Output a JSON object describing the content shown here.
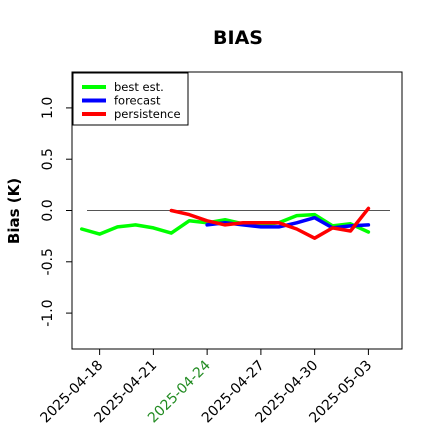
{
  "chart_data": {
    "type": "line",
    "title": "BIAS",
    "xlabel": "",
    "ylabel": "Bias (K)",
    "x_ticks": [
      "2025-04-18",
      "2025-04-21",
      "2025-04-24",
      "2025-04-27",
      "2025-04-30",
      "2025-05-03"
    ],
    "highlighted_tick": "2025-04-24",
    "highlight_color": "#228B22",
    "y_ticks": [
      "-1.0",
      "-0.5",
      "0.0",
      "0.5",
      "1.0"
    ],
    "ylim": [
      -1.35,
      1.35
    ],
    "xlim": [
      "2025-04-16 11:00",
      "2025-05-04 21:00"
    ],
    "grid": false,
    "reference_line": 0,
    "legend_position": "top-left",
    "series": [
      {
        "name": "best est.",
        "color": "#00ff00",
        "x": [
          "2025-04-17",
          "2025-04-18",
          "2025-04-19",
          "2025-04-20",
          "2025-04-21",
          "2025-04-22",
          "2025-04-23",
          "2025-04-24",
          "2025-04-25",
          "2025-04-26",
          "2025-04-27",
          "2025-04-28",
          "2025-04-29",
          "2025-04-30",
          "2025-05-01",
          "2025-05-02",
          "2025-05-03"
        ],
        "values": [
          -0.18,
          -0.23,
          -0.16,
          -0.14,
          -0.17,
          -0.22,
          -0.1,
          -0.12,
          -0.09,
          -0.13,
          -0.14,
          -0.12,
          -0.05,
          -0.04,
          -0.15,
          -0.13,
          -0.21
        ]
      },
      {
        "name": "forecast",
        "color": "#0000ff",
        "x": [
          "2025-04-24",
          "2025-04-25",
          "2025-04-26",
          "2025-04-27",
          "2025-04-28",
          "2025-04-29",
          "2025-04-30",
          "2025-05-01",
          "2025-05-02",
          "2025-05-03"
        ],
        "values": [
          -0.14,
          -0.12,
          -0.14,
          -0.16,
          -0.16,
          -0.12,
          -0.07,
          -0.17,
          -0.15,
          -0.14
        ]
      },
      {
        "name": "persistence",
        "color": "#ff0000",
        "x": [
          "2025-04-22",
          "2025-04-23",
          "2025-04-24",
          "2025-04-25",
          "2025-04-26",
          "2025-04-27",
          "2025-04-28",
          "2025-04-29",
          "2025-04-30",
          "2025-05-01",
          "2025-05-02",
          "2025-05-03"
        ],
        "values": [
          0.0,
          -0.04,
          -0.1,
          -0.14,
          -0.12,
          -0.12,
          -0.12,
          -0.18,
          -0.27,
          -0.17,
          -0.2,
          0.02
        ]
      }
    ]
  }
}
